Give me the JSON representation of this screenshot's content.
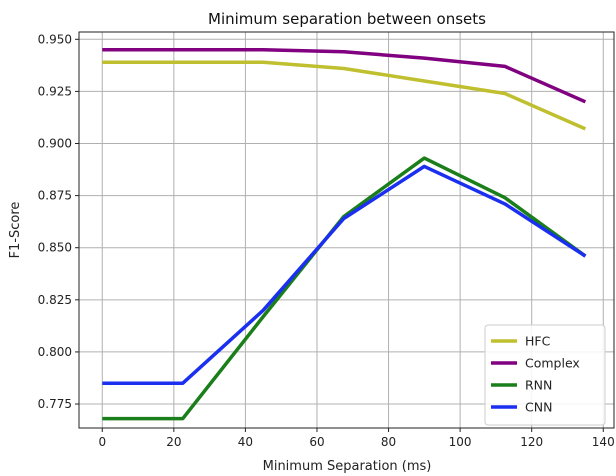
{
  "chart_data": {
    "type": "line",
    "title": "Minimum separation between onsets",
    "xlabel": "Minimum Separation (ms)",
    "ylabel": "F1-Score",
    "xlim": [
      -6.5,
      143
    ],
    "ylim": [
      0.7635,
      0.9535
    ],
    "xticks": [
      0,
      20,
      40,
      60,
      80,
      100,
      120,
      140
    ],
    "yticks": [
      0.775,
      0.8,
      0.825,
      0.85,
      0.875,
      0.9,
      0.925,
      0.95
    ],
    "grid": true,
    "legend_position": "lower-right",
    "x": [
      0,
      22.5,
      45,
      67.5,
      90,
      112.5,
      135
    ],
    "series": [
      {
        "name": "HFC",
        "color": "#bfbf2f",
        "values": [
          0.939,
          0.939,
          0.939,
          0.936,
          0.93,
          0.924,
          0.907
        ]
      },
      {
        "name": "Complex",
        "color": "#800080",
        "values": [
          0.945,
          0.945,
          0.945,
          0.944,
          0.941,
          0.937,
          0.92
        ]
      },
      {
        "name": "RNN",
        "color": "#1a7f1a",
        "values": [
          0.768,
          0.768,
          0.817,
          0.865,
          0.893,
          0.874,
          0.846
        ]
      },
      {
        "name": "CNN",
        "color": "#1a2ff0",
        "values": [
          0.785,
          0.785,
          0.82,
          0.864,
          0.889,
          0.871,
          0.846
        ]
      }
    ]
  }
}
